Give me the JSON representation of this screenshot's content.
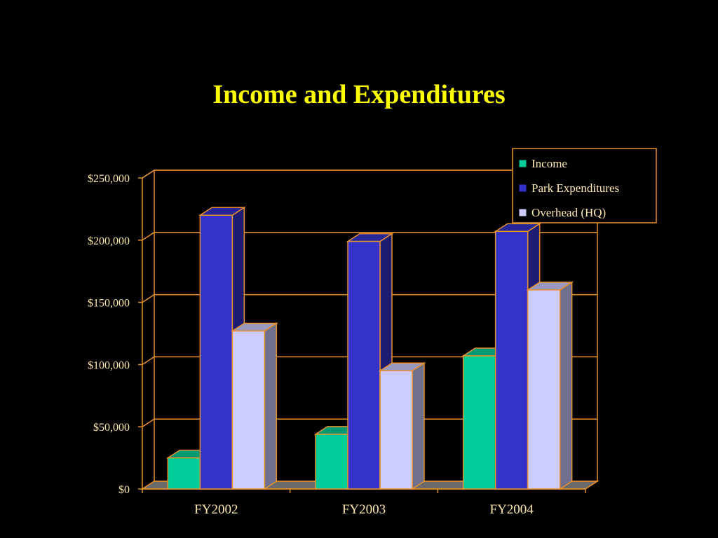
{
  "chart_data": {
    "type": "bar",
    "title": "Income and Expenditures",
    "xlabel": "",
    "ylabel": "",
    "categories": [
      "FY2002",
      "FY2003",
      "FY2004"
    ],
    "series": [
      {
        "name": "Income",
        "values": [
          25000,
          44000,
          107000
        ],
        "color": "#00CC99"
      },
      {
        "name": "Park Expenditures",
        "values": [
          220000,
          199000,
          207000
        ],
        "color": "#3333CC"
      },
      {
        "name": "Overhead (HQ)",
        "values": [
          127000,
          95000,
          160000
        ],
        "color": "#CCCCFF"
      }
    ],
    "ylim": [
      0,
      250000
    ],
    "yticks": [
      0,
      50000,
      100000,
      150000,
      200000,
      250000
    ],
    "ytick_labels": [
      "$0",
      "$50,000",
      "$100,000",
      "$150,000",
      "$200,000",
      "$250,000"
    ],
    "grid": true,
    "legend_position": "top-right",
    "three_d": true
  },
  "colors": {
    "background": "#000000",
    "title": "#FFFF00",
    "axis": "#E8922E",
    "text": "#FFE8B0"
  }
}
